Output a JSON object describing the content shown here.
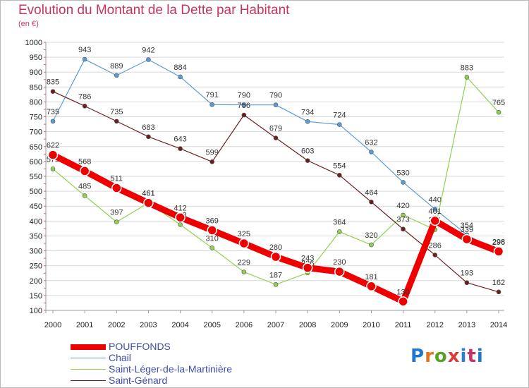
{
  "chart_data": {
    "type": "line",
    "title": "Evolution du Montant de la Dette par Habitant",
    "subtitle": "(en €)",
    "xlabel": "",
    "ylabel": "",
    "x": [
      "2000",
      "2001",
      "2002",
      "2003",
      "2004",
      "2005",
      "2006",
      "2007",
      "2008",
      "2009",
      "2010",
      "2011",
      "2012",
      "2013",
      "2014"
    ],
    "yticks": [
      100,
      150,
      200,
      250,
      300,
      350,
      400,
      450,
      500,
      550,
      600,
      650,
      700,
      750,
      800,
      850,
      900,
      950,
      1000
    ],
    "ylim": [
      100,
      1000
    ],
    "grid": true,
    "legend_position": "bottom-left",
    "series": [
      {
        "name": "Chail",
        "color": "#5b9bd5",
        "values": [
          735,
          943,
          889,
          942,
          884,
          791,
          790,
          790,
          734,
          724,
          632,
          530,
          440,
          354,
          296
        ],
        "labels": [
          "735",
          "943",
          "889",
          "942",
          "884",
          "791",
          "790",
          "790",
          "734",
          "724",
          "632",
          "530",
          "440",
          "354",
          "296"
        ]
      },
      {
        "name": "Saint-Léger-de-la-Martinière",
        "color": "#92d050",
        "values": [
          575,
          485,
          397,
          461,
          388,
          310,
          229,
          187,
          226,
          364,
          320,
          420,
          371,
          883,
          765
        ],
        "labels": [
          "575",
          "485",
          "397",
          "461",
          "388",
          "310",
          "229",
          "187",
          "226",
          "364",
          "320",
          "420",
          "371",
          "883",
          "765"
        ]
      },
      {
        "name": "Saint-Génard",
        "color": "#6b1e1e",
        "values": [
          835,
          786,
          735,
          683,
          643,
          599,
          756,
          679,
          603,
          554,
          464,
          373,
          286,
          193,
          162
        ],
        "labels": [
          "835",
          "786",
          "735",
          "683",
          "643",
          "599",
          "756",
          "679",
          "603",
          "554",
          "464",
          "373",
          "286",
          "193",
          "162"
        ]
      },
      {
        "name": "POUFFONDS",
        "color": "#ee0000",
        "values": [
          622,
          568,
          511,
          461,
          412,
          369,
          325,
          280,
          243,
          230,
          181,
          130,
          401,
          339,
          298
        ],
        "labels": [
          "622",
          "568",
          "511",
          "461",
          "412",
          "369",
          "325",
          "280",
          "243",
          "230",
          "181",
          "130",
          "401",
          "339",
          "298"
        ]
      }
    ],
    "legend": [
      "POUFFONDS",
      "Chail",
      "Saint-Léger-de-la-Martinière",
      "Saint-Génard"
    ]
  },
  "logo": {
    "text": "Proxiti",
    "colors": [
      "#1f77c9",
      "#e5721d",
      "#5aa02c",
      "#e03a3a",
      "#2a7fd4",
      "#c83264",
      "#1f77c9"
    ]
  }
}
